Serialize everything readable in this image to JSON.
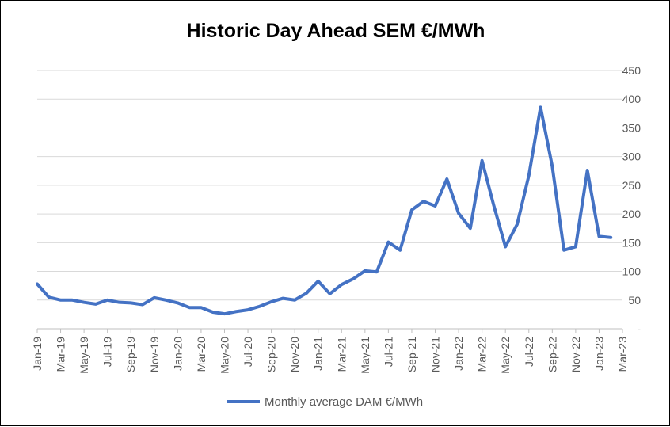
{
  "chart_data": {
    "type": "line",
    "title": "Historic Day Ahead SEM €/MWh",
    "xlabel": "",
    "ylabel": "",
    "ylim": [
      0,
      450
    ],
    "y_ticks": [
      0,
      50,
      100,
      150,
      200,
      250,
      300,
      350,
      400,
      450
    ],
    "y_tick_labels": [
      "-",
      "50",
      "100",
      "150",
      "200",
      "250",
      "300",
      "350",
      "400",
      "450"
    ],
    "y_axis_position": "right",
    "grid": true,
    "legend": "bottom",
    "x_tick_labels": [
      "Jan-19",
      "Mar-19",
      "May-19",
      "Jul-19",
      "Sep-19",
      "Nov-19",
      "Jan-20",
      "Mar-20",
      "May-20",
      "Jul-20",
      "Sep-20",
      "Nov-20",
      "Jan-21",
      "Mar-21",
      "May-21",
      "Jul-21",
      "Sep-21",
      "Nov-21",
      "Jan-22",
      "Mar-22",
      "May-22",
      "Jul-22",
      "Sep-22",
      "Nov-22",
      "Jan-23",
      "Mar-23"
    ],
    "categories": [
      "Jan-19",
      "Feb-19",
      "Mar-19",
      "Apr-19",
      "May-19",
      "Jun-19",
      "Jul-19",
      "Aug-19",
      "Sep-19",
      "Oct-19",
      "Nov-19",
      "Dec-19",
      "Jan-20",
      "Feb-20",
      "Mar-20",
      "Apr-20",
      "May-20",
      "Jun-20",
      "Jul-20",
      "Aug-20",
      "Sep-20",
      "Oct-20",
      "Nov-20",
      "Dec-20",
      "Jan-21",
      "Feb-21",
      "Mar-21",
      "Apr-21",
      "May-21",
      "Jun-21",
      "Jul-21",
      "Aug-21",
      "Sep-21",
      "Oct-21",
      "Nov-21",
      "Dec-21",
      "Jan-22",
      "Feb-22",
      "Mar-22",
      "Apr-22",
      "May-22",
      "Jun-22",
      "Jul-22",
      "Aug-22",
      "Sep-22",
      "Oct-22",
      "Nov-22",
      "Dec-22",
      "Jan-23",
      "Feb-23",
      "Mar-23"
    ],
    "series": [
      {
        "name": "Monthly average DAM €/MWh",
        "color": "#4472c4",
        "values": [
          78,
          55,
          50,
          50,
          46,
          43,
          50,
          46,
          45,
          42,
          54,
          50,
          45,
          37,
          37,
          29,
          26,
          30,
          33,
          39,
          47,
          53,
          50,
          62,
          83,
          61,
          77,
          87,
          101,
          99,
          151,
          137,
          207,
          222,
          214,
          261,
          201,
          175,
          293,
          215,
          143,
          182,
          267,
          386,
          283,
          137,
          143,
          276,
          161,
          159,
          null
        ]
      }
    ]
  }
}
